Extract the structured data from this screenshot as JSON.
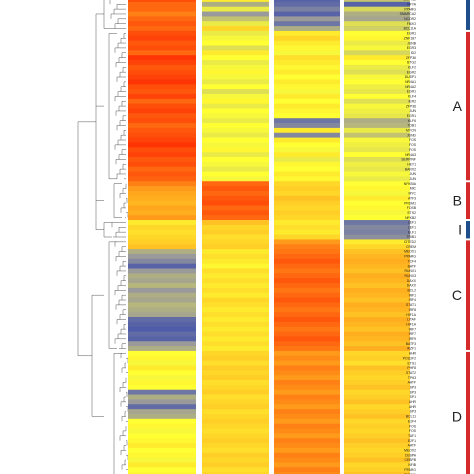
{
  "chart_data": {
    "type": "heatmap",
    "title": "",
    "xlabel": "",
    "ylabel": "",
    "value_range": [
      0,
      1
    ],
    "color_stops": [
      "#2c3fb0",
      "#9a9a9a",
      "#ffff33",
      "#ff9a1a",
      "#ff1a00"
    ],
    "columns": [
      "",
      "",
      "",
      ""
    ],
    "rows": [
      {
        "gene": "ZNF462",
        "values": [
          0.9,
          0.55,
          0.1,
          0.35
        ]
      },
      {
        "gene": "NFYA",
        "values": [
          0.85,
          0.3,
          0.12,
          0.1
        ]
      },
      {
        "gene": "PPARG",
        "values": [
          0.85,
          0.45,
          0.18,
          0.4
        ]
      },
      {
        "gene": "SMARCA2",
        "values": [
          0.8,
          0.25,
          0.1,
          0.3
        ]
      },
      {
        "gene": "NCOR2",
        "values": [
          0.85,
          0.35,
          0.25,
          0.28
        ]
      },
      {
        "gene": "FBXO",
        "values": [
          0.88,
          0.45,
          0.15,
          0.42
        ]
      },
      {
        "gene": "BCL11A",
        "values": [
          0.85,
          0.6,
          0.3,
          0.38
        ]
      },
      {
        "gene": "EGR1",
        "values": [
          0.9,
          0.45,
          0.55,
          0.5
        ]
      },
      {
        "gene": "ZNF187",
        "values": [
          0.92,
          0.48,
          0.6,
          0.52
        ]
      },
      {
        "gene": "JUNB",
        "values": [
          0.88,
          0.5,
          0.55,
          0.45
        ]
      },
      {
        "gene": "EGR3",
        "values": [
          0.9,
          0.42,
          0.52,
          0.48
        ]
      },
      {
        "gene": "ID2",
        "values": [
          0.85,
          0.55,
          0.48,
          0.4
        ]
      },
      {
        "gene": "ZFP36",
        "values": [
          0.95,
          0.5,
          0.58,
          0.55
        ]
      },
      {
        "gene": "BTG2",
        "values": [
          0.92,
          0.45,
          0.55,
          0.5
        ]
      },
      {
        "gene": "KLF2",
        "values": [
          0.88,
          0.48,
          0.52,
          0.45
        ]
      },
      {
        "gene": "EGR2",
        "values": [
          0.9,
          0.52,
          0.55,
          0.42
        ]
      },
      {
        "gene": "DUSP1",
        "values": [
          0.92,
          0.48,
          0.5,
          0.48
        ]
      },
      {
        "gene": "NR4A1",
        "values": [
          0.95,
          0.45,
          0.55,
          0.5
        ]
      },
      {
        "gene": "NR4A2",
        "values": [
          0.9,
          0.5,
          0.52,
          0.46
        ]
      },
      {
        "gene": "EGR1",
        "values": [
          0.88,
          0.42,
          0.48,
          0.44
        ]
      },
      {
        "gene": "KLF4",
        "values": [
          0.92,
          0.48,
          0.55,
          0.5
        ]
      },
      {
        "gene": "IER2",
        "values": [
          0.85,
          0.52,
          0.5,
          0.42
        ]
      },
      {
        "gene": "ZFP36",
        "values": [
          0.9,
          0.45,
          0.55,
          0.48
        ]
      },
      {
        "gene": "JUN",
        "values": [
          0.92,
          0.5,
          0.52,
          0.46
        ]
      },
      {
        "gene": "EGR1",
        "values": [
          0.88,
          0.48,
          0.5,
          0.44
        ]
      },
      {
        "gene": "KLF6",
        "values": [
          0.9,
          0.45,
          0.15,
          0.3
        ]
      },
      {
        "gene": "TOB1",
        "values": [
          0.85,
          0.5,
          0.2,
          0.32
        ]
      },
      {
        "gene": "MYCN",
        "values": [
          0.88,
          0.48,
          0.55,
          0.45
        ]
      },
      {
        "gene": "JUND",
        "values": [
          0.9,
          0.45,
          0.2,
          0.35
        ]
      },
      {
        "gene": "FOS",
        "values": [
          0.92,
          0.5,
          0.55,
          0.48
        ]
      },
      {
        "gene": "FOS",
        "values": [
          0.95,
          0.48,
          0.5,
          0.46
        ]
      },
      {
        "gene": "FOS",
        "values": [
          0.9,
          0.52,
          0.48,
          0.44
        ]
      },
      {
        "gene": "NR4A3",
        "values": [
          0.92,
          0.45,
          0.55,
          0.5
        ]
      },
      {
        "gene": "SERPINF",
        "values": [
          0.88,
          0.5,
          0.45,
          0.42
        ]
      },
      {
        "gene": "HEY1",
        "values": [
          0.9,
          0.48,
          0.52,
          0.46
        ]
      },
      {
        "gene": "BARX2",
        "values": [
          0.85,
          0.45,
          0.5,
          0.44
        ]
      },
      {
        "gene": "JUN",
        "values": [
          0.88,
          0.5,
          0.55,
          0.48
        ]
      },
      {
        "gene": "JUN",
        "values": [
          0.86,
          0.48,
          0.52,
          0.45
        ]
      },
      {
        "gene": "NFKBIA",
        "values": [
          0.8,
          0.85,
          0.6,
          0.5
        ]
      },
      {
        "gene": "MIC",
        "values": [
          0.75,
          0.88,
          0.62,
          0.52
        ]
      },
      {
        "gene": "MYC",
        "values": [
          0.72,
          0.85,
          0.6,
          0.48
        ]
      },
      {
        "gene": "ATF3",
        "values": [
          0.7,
          0.88,
          0.65,
          0.55
        ]
      },
      {
        "gene": "PRDM1",
        "values": [
          0.68,
          0.9,
          0.62,
          0.5
        ]
      },
      {
        "gene": "FOSB",
        "values": [
          0.72,
          0.85,
          0.6,
          0.52
        ]
      },
      {
        "gene": "ETS2",
        "values": [
          0.7,
          0.88,
          0.62,
          0.48
        ]
      },
      {
        "gene": "NFKB2",
        "values": [
          0.75,
          0.85,
          0.6,
          0.5
        ]
      },
      {
        "gene": "LEF1",
        "values": [
          0.55,
          0.65,
          0.55,
          0.15
        ]
      },
      {
        "gene": "LEF1",
        "values": [
          0.6,
          0.6,
          0.58,
          0.2
        ]
      },
      {
        "gene": "ELF1",
        "values": [
          0.58,
          0.62,
          0.55,
          0.18
        ]
      },
      {
        "gene": "TRIB1",
        "values": [
          0.6,
          0.58,
          0.6,
          0.22
        ]
      },
      {
        "gene": "CITED2",
        "values": [
          0.62,
          0.6,
          0.75,
          0.55
        ]
      },
      {
        "gene": "CREM",
        "values": [
          0.65,
          0.62,
          0.8,
          0.6
        ]
      },
      {
        "gene": "MEOX1",
        "values": [
          0.3,
          0.55,
          0.82,
          0.65
        ]
      },
      {
        "gene": "PPARG",
        "values": [
          0.25,
          0.58,
          0.85,
          0.68
        ]
      },
      {
        "gene": "TCF4",
        "values": [
          0.2,
          0.55,
          0.88,
          0.7
        ]
      },
      {
        "gene": "BATF",
        "values": [
          0.1,
          0.52,
          0.85,
          0.68
        ]
      },
      {
        "gene": "RUNX1",
        "values": [
          0.25,
          0.58,
          0.82,
          0.65
        ]
      },
      {
        "gene": "RUNX3",
        "values": [
          0.3,
          0.55,
          0.85,
          0.7
        ]
      },
      {
        "gene": "DAXX",
        "values": [
          0.28,
          0.58,
          0.88,
          0.68
        ]
      },
      {
        "gene": "DAXX",
        "values": [
          0.32,
          0.55,
          0.85,
          0.65
        ]
      },
      {
        "gene": "BCL2",
        "values": [
          0.25,
          0.58,
          0.82,
          0.7
        ]
      },
      {
        "gene": "IRF1",
        "values": [
          0.3,
          0.55,
          0.85,
          0.68
        ]
      },
      {
        "gene": "IRF4",
        "values": [
          0.28,
          0.6,
          0.88,
          0.65
        ]
      },
      {
        "gene": "STAT1",
        "values": [
          0.32,
          0.58,
          0.85,
          0.7
        ]
      },
      {
        "gene": "IRF8",
        "values": [
          0.3,
          0.55,
          0.82,
          0.68
        ]
      },
      {
        "gene": "HIF1A",
        "values": [
          0.28,
          0.58,
          0.85,
          0.65
        ]
      },
      {
        "gene": "LITAF",
        "values": [
          0.12,
          0.55,
          0.88,
          0.7
        ]
      },
      {
        "gene": "HIF1A",
        "values": [
          0.1,
          0.58,
          0.85,
          0.68
        ]
      },
      {
        "gene": "IRF7",
        "values": [
          0.08,
          0.55,
          0.82,
          0.65
        ]
      },
      {
        "gene": "IRF7",
        "values": [
          0.12,
          0.58,
          0.85,
          0.7
        ]
      },
      {
        "gene": "IRF9",
        "values": [
          0.1,
          0.55,
          0.88,
          0.68
        ]
      },
      {
        "gene": "BATF3",
        "values": [
          0.25,
          0.58,
          0.85,
          0.65
        ]
      },
      {
        "gene": "IKZF1",
        "values": [
          0.3,
          0.55,
          0.82,
          0.7
        ]
      },
      {
        "gene": "AHR",
        "values": [
          0.5,
          0.6,
          0.75,
          0.6
        ]
      },
      {
        "gene": "POU2F2",
        "values": [
          0.52,
          0.62,
          0.78,
          0.62
        ]
      },
      {
        "gene": "ETS1",
        "values": [
          0.48,
          0.58,
          0.75,
          0.58
        ]
      },
      {
        "gene": "PHF8",
        "values": [
          0.55,
          0.62,
          0.8,
          0.65
        ]
      },
      {
        "gene": "STAT2",
        "values": [
          0.5,
          0.6,
          0.78,
          0.62
        ]
      },
      {
        "gene": "TP63",
        "values": [
          0.48,
          0.62,
          0.75,
          0.6
        ]
      },
      {
        "gene": "AATF",
        "values": [
          0.52,
          0.58,
          0.8,
          0.62
        ]
      },
      {
        "gene": "SP3",
        "values": [
          0.5,
          0.6,
          0.78,
          0.65
        ]
      },
      {
        "gene": "SP3",
        "values": [
          0.15,
          0.62,
          0.75,
          0.6
        ]
      },
      {
        "gene": "SP1",
        "values": [
          0.3,
          0.58,
          0.8,
          0.62
        ]
      },
      {
        "gene": "AHR",
        "values": [
          0.25,
          0.6,
          0.78,
          0.65
        ]
      },
      {
        "gene": "AHR",
        "values": [
          0.12,
          0.62,
          0.75,
          0.6
        ]
      },
      {
        "gene": "SP3",
        "values": [
          0.28,
          0.58,
          0.8,
          0.62
        ]
      },
      {
        "gene": "BCL11",
        "values": [
          0.3,
          0.6,
          0.78,
          0.65
        ]
      },
      {
        "gene": "E2F4",
        "values": [
          0.5,
          0.62,
          0.75,
          0.6
        ]
      },
      {
        "gene": "FOS",
        "values": [
          0.52,
          0.6,
          0.8,
          0.62
        ]
      },
      {
        "gene": "FOS",
        "values": [
          0.48,
          0.58,
          0.78,
          0.6
        ]
      },
      {
        "gene": "TAF1",
        "values": [
          0.5,
          0.6,
          0.75,
          0.62
        ]
      },
      {
        "gene": "E2F1",
        "values": [
          0.52,
          0.62,
          0.8,
          0.65
        ]
      },
      {
        "gene": "AATF",
        "values": [
          0.55,
          0.6,
          0.78,
          0.62
        ]
      },
      {
        "gene": "MEOX2",
        "values": [
          0.5,
          0.58,
          0.75,
          0.6
        ]
      },
      {
        "gene": "CEBPA",
        "values": [
          0.52,
          0.62,
          0.8,
          0.62
        ]
      },
      {
        "gene": "CEBPB",
        "values": [
          0.48,
          0.6,
          0.78,
          0.65
        ]
      },
      {
        "gene": "NFIB",
        "values": [
          0.55,
          0.62,
          0.75,
          0.6
        ]
      },
      {
        "gene": "PPARG",
        "values": [
          0.5,
          0.58,
          0.8,
          0.62
        ]
      },
      {
        "gene": "ZNF330",
        "values": [
          0.52,
          0.6,
          0.78,
          0.65
        ]
      }
    ],
    "clusters": [
      {
        "label": "",
        "start": 0,
        "end": 6,
        "color": "#1f4e8c"
      },
      {
        "label": "A",
        "start": 7,
        "end": 37,
        "color": "#d42a2a"
      },
      {
        "label": "B",
        "start": 38,
        "end": 45,
        "color": "#d42a2a"
      },
      {
        "label": "I",
        "start": 46,
        "end": 49,
        "color": "#1f4e8c"
      },
      {
        "label": "C",
        "start": 50,
        "end": 72,
        "color": "#d42a2a"
      },
      {
        "label": "D",
        "start": 73,
        "end": 99,
        "color": "#d42a2a"
      }
    ]
  }
}
